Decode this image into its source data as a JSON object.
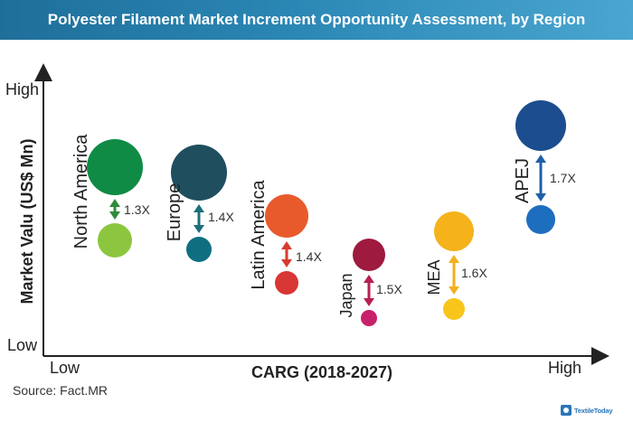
{
  "header": {
    "title": "Polyester Filament Market Increment Opportunity Assessment, by Region"
  },
  "footer": {
    "source": "Source: Fact.MR",
    "logo_text": "TextileToday"
  },
  "chart_data": {
    "type": "scatter",
    "title": "Polyester Filament Market Increment Opportunity Assessment, by Region",
    "xlabel": "CARG (2018-2027)",
    "ylabel": "Market Valu (US$ Mn)",
    "x_tick_labels": [
      "Low",
      "High"
    ],
    "y_tick_labels": [
      "Low",
      "High"
    ],
    "series": [
      {
        "region": "North America",
        "multiplier": "1.3X",
        "color": "#0f8b45",
        "arrow_color": "#2e8b3a",
        "small_color": "#8cc63f"
      },
      {
        "region": "Europe",
        "multiplier": "1.4X",
        "color": "#1f4e5f",
        "arrow_color": "#1d6f7a",
        "small_color": "#0f6f80"
      },
      {
        "region": "Latin America",
        "multiplier": "1.4X",
        "color": "#e85a2c",
        "arrow_color": "#d63b2f",
        "small_color": "#d93636"
      },
      {
        "region": "Japan",
        "multiplier": "1.5X",
        "color": "#9e1a3e",
        "arrow_color": "#b61f52",
        "small_color": "#c7216a"
      },
      {
        "region": "MEA",
        "multiplier": "1.6X",
        "color": "#f5b21b",
        "arrow_color": "#f2b01e",
        "small_color": "#f7c51b"
      },
      {
        "region": "APEJ",
        "multiplier": "1.7X",
        "color": "#1c4e8f",
        "arrow_color": "#1e5fa8",
        "small_color": "#1e6ec0"
      }
    ]
  }
}
